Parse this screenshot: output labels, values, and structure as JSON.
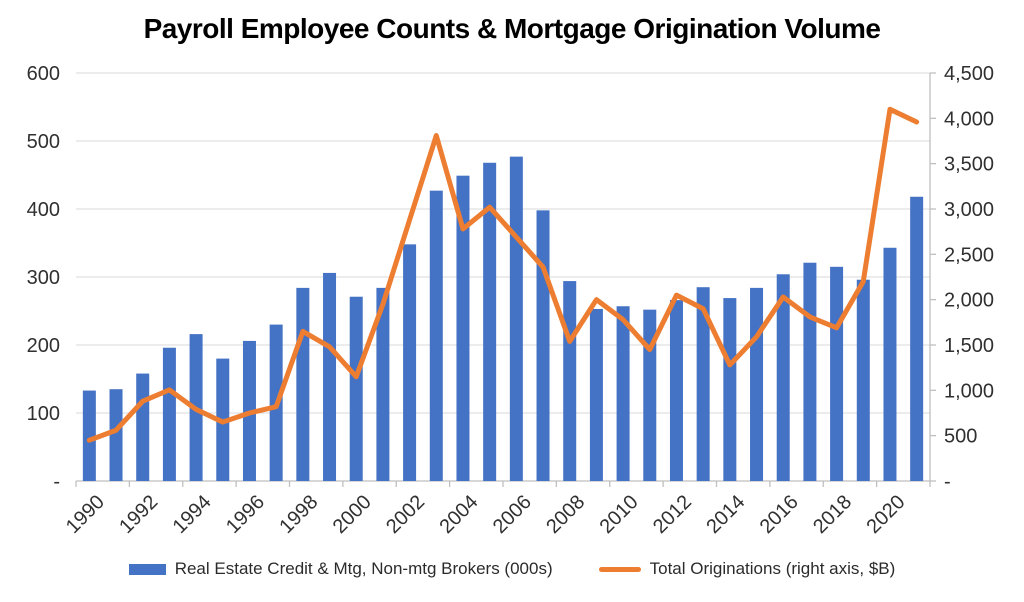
{
  "chart_data": {
    "type": "combo",
    "title": "Payroll Employee Counts & Mortgage Origination Volume",
    "categories": [
      "1990",
      "1991",
      "1992",
      "1993",
      "1994",
      "1995",
      "1996",
      "1997",
      "1998",
      "1999",
      "2000",
      "2001",
      "2002",
      "2003",
      "2004",
      "2005",
      "2006",
      "2007",
      "2008",
      "2009",
      "2010",
      "2011",
      "2012",
      "2013",
      "2014",
      "2015",
      "2016",
      "2017",
      "2018",
      "2019",
      "2020",
      "2021"
    ],
    "series": [
      {
        "name": "Real Estate Credit & Mtg, Non-mtg Brokers (000s)",
        "type": "bar",
        "axis": "left",
        "color": "#4472C4",
        "values": [
          133,
          135,
          158,
          196,
          216,
          180,
          206,
          230,
          284,
          306,
          271,
          284,
          348,
          427,
          449,
          468,
          477,
          398,
          294,
          253,
          257,
          252,
          266,
          285,
          269,
          284,
          304,
          321,
          315,
          296,
          343,
          418
        ]
      },
      {
        "name": "Total Originations (right axis, $B)",
        "type": "line",
        "axis": "right",
        "color": "#ED7D31",
        "values": [
          450,
          560,
          880,
          1005,
          790,
          650,
          750,
          820,
          1650,
          1480,
          1150,
          1950,
          2880,
          3810,
          2780,
          3020,
          2690,
          2360,
          1540,
          2000,
          1780,
          1450,
          2050,
          1900,
          1280,
          1590,
          2030,
          1810,
          1690,
          2200,
          4100,
          3960
        ]
      }
    ],
    "left_axis": {
      "min": 0,
      "max": 600,
      "step": 100,
      "tick_labels": [
        "600",
        "500",
        "400",
        "300",
        "200",
        "100",
        "-"
      ]
    },
    "right_axis": {
      "min": 0,
      "max": 4500,
      "step": 500,
      "tick_labels": [
        "4,500",
        "4,000",
        "3,500",
        "3,000",
        "2,500",
        "2,000",
        "1,500",
        "1,000",
        "500",
        "-"
      ]
    },
    "x_tick_labels": [
      "1990",
      "1992",
      "1994",
      "1996",
      "1998",
      "2000",
      "2002",
      "2004",
      "2006",
      "2008",
      "2010",
      "2012",
      "2014",
      "2016",
      "2018",
      "2020"
    ],
    "grid": true,
    "legend_position": "bottom",
    "colors": {
      "bar": "#4472C4",
      "line": "#ED7D31",
      "gridline": "#D9D9D9",
      "axis_line": "#BFBFBF",
      "axis_text": "#303030",
      "title_text": "#000000"
    }
  }
}
